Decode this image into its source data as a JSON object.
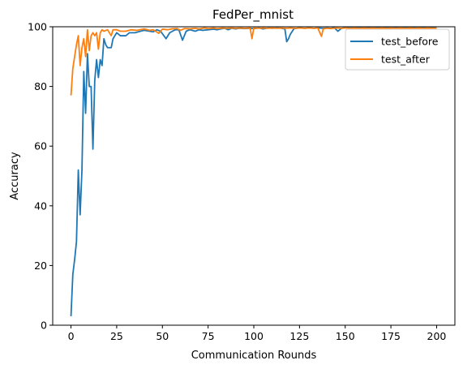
{
  "chart_data": {
    "type": "line",
    "title": "FedPer_mnist",
    "xlabel": "Communication Rounds",
    "ylabel": "Accuracy",
    "xlim": [
      -10,
      210
    ],
    "ylim": [
      0,
      100
    ],
    "xticks": [
      0,
      25,
      50,
      75,
      100,
      125,
      150,
      175,
      200
    ],
    "yticks": [
      0,
      20,
      40,
      60,
      80,
      100
    ],
    "grid": false,
    "legend_position": "top-right",
    "series": [
      {
        "name": "test_before",
        "color": "#1f77b4",
        "points": [
          [
            0,
            3
          ],
          [
            1,
            17
          ],
          [
            2,
            22
          ],
          [
            3,
            28
          ],
          [
            4,
            52
          ],
          [
            5,
            37
          ],
          [
            6,
            52
          ],
          [
            7,
            85
          ],
          [
            8,
            71
          ],
          [
            9,
            91
          ],
          [
            10,
            80
          ],
          [
            11,
            80
          ],
          [
            12,
            59
          ],
          [
            13,
            82
          ],
          [
            14,
            89
          ],
          [
            15,
            83
          ],
          [
            16,
            89
          ],
          [
            17,
            87
          ],
          [
            18,
            96
          ],
          [
            19,
            94
          ],
          [
            20,
            93
          ],
          [
            21,
            93
          ],
          [
            22,
            93
          ],
          [
            23,
            96
          ],
          [
            24,
            97
          ],
          [
            25,
            98
          ],
          [
            27,
            97
          ],
          [
            30,
            97
          ],
          [
            32,
            98
          ],
          [
            35,
            98
          ],
          [
            38,
            98.5
          ],
          [
            40,
            98.8
          ],
          [
            43,
            98.5
          ],
          [
            45,
            98.3
          ],
          [
            47,
            99
          ],
          [
            49,
            98.5
          ],
          [
            52,
            96
          ],
          [
            54,
            98
          ],
          [
            57,
            99
          ],
          [
            59,
            99
          ],
          [
            61,
            95.5
          ],
          [
            63,
            98.5
          ],
          [
            65,
            99
          ],
          [
            68,
            98.5
          ],
          [
            70,
            99
          ],
          [
            72,
            98.8
          ],
          [
            75,
            99
          ],
          [
            78,
            99.2
          ],
          [
            80,
            99
          ],
          [
            82,
            99.3
          ],
          [
            84,
            99.5
          ],
          [
            86,
            99
          ],
          [
            88,
            99.5
          ],
          [
            90,
            99.3
          ],
          [
            92,
            99.5
          ],
          [
            95,
            99.4
          ],
          [
            98,
            99.5
          ],
          [
            100,
            99.4
          ],
          [
            103,
            99.6
          ],
          [
            105,
            99.3
          ],
          [
            108,
            99.6
          ],
          [
            110,
            99.5
          ],
          [
            113,
            99.6
          ],
          [
            115,
            99.5
          ],
          [
            117,
            99.3
          ],
          [
            118,
            95
          ],
          [
            119,
            96
          ],
          [
            120,
            97.5
          ],
          [
            122,
            99.4
          ],
          [
            125,
            99.6
          ],
          [
            128,
            99.5
          ],
          [
            130,
            99.6
          ],
          [
            133,
            99.5
          ],
          [
            135,
            99.6
          ],
          [
            138,
            99.5
          ],
          [
            140,
            99.6
          ],
          [
            142,
            99.5
          ],
          [
            144,
            99.7
          ],
          [
            146,
            98.5
          ],
          [
            148,
            99.5
          ],
          [
            150,
            99.7
          ],
          [
            153,
            99.6
          ],
          [
            155,
            99.8
          ],
          [
            158,
            99.7
          ],
          [
            160,
            99.8
          ],
          [
            163,
            99.7
          ],
          [
            165,
            99.8
          ],
          [
            168,
            99.7
          ],
          [
            170,
            99.8
          ],
          [
            173,
            99.7
          ],
          [
            175,
            99.8
          ],
          [
            178,
            99.7
          ],
          [
            180,
            99.8
          ],
          [
            183,
            99.7
          ],
          [
            185,
            99.8
          ],
          [
            188,
            99.7
          ],
          [
            190,
            99.8
          ],
          [
            193,
            99.7
          ],
          [
            195,
            99.8
          ],
          [
            198,
            99.7
          ],
          [
            200,
            99.8
          ]
        ]
      },
      {
        "name": "test_after",
        "color": "#ff7f0e",
        "points": [
          [
            0,
            77
          ],
          [
            1,
            86
          ],
          [
            2,
            90
          ],
          [
            3,
            94
          ],
          [
            4,
            97
          ],
          [
            5,
            87
          ],
          [
            6,
            93
          ],
          [
            7,
            96
          ],
          [
            8,
            90
          ],
          [
            9,
            99
          ],
          [
            10,
            92
          ],
          [
            11,
            97
          ],
          [
            12,
            98
          ],
          [
            13,
            97
          ],
          [
            14,
            98
          ],
          [
            15,
            92.5
          ],
          [
            16,
            98
          ],
          [
            17,
            99
          ],
          [
            18,
            98.5
          ],
          [
            20,
            99
          ],
          [
            22,
            97
          ],
          [
            23,
            99
          ],
          [
            25,
            99
          ],
          [
            27,
            98.5
          ],
          [
            30,
            98.5
          ],
          [
            33,
            99
          ],
          [
            36,
            98.8
          ],
          [
            40,
            99.3
          ],
          [
            43,
            98.8
          ],
          [
            45,
            99
          ],
          [
            48,
            97.8
          ],
          [
            50,
            99.2
          ],
          [
            53,
            99
          ],
          [
            55,
            99.3
          ],
          [
            58,
            99.4
          ],
          [
            60,
            98.8
          ],
          [
            62,
            99.4
          ],
          [
            65,
            99.3
          ],
          [
            68,
            99.5
          ],
          [
            70,
            99.3
          ],
          [
            73,
            99.6
          ],
          [
            75,
            99.4
          ],
          [
            78,
            99.6
          ],
          [
            80,
            99.4
          ],
          [
            83,
            99.6
          ],
          [
            85,
            99.5
          ],
          [
            88,
            99.6
          ],
          [
            90,
            99.5
          ],
          [
            93,
            99.6
          ],
          [
            95,
            99.5
          ],
          [
            98,
            99.6
          ],
          [
            99,
            96
          ],
          [
            100,
            99.6
          ],
          [
            103,
            99.5
          ],
          [
            105,
            99.6
          ],
          [
            108,
            99.5
          ],
          [
            110,
            99.6
          ],
          [
            113,
            99.5
          ],
          [
            115,
            99.6
          ],
          [
            118,
            99.5
          ],
          [
            120,
            99.6
          ],
          [
            123,
            99.5
          ],
          [
            125,
            99.6
          ],
          [
            128,
            99.5
          ],
          [
            130,
            99.6
          ],
          [
            133,
            99.5
          ],
          [
            135,
            99.6
          ],
          [
            137,
            96.8
          ],
          [
            138,
            99.3
          ],
          [
            140,
            99.5
          ],
          [
            142,
            99.4
          ],
          [
            145,
            99.6
          ],
          [
            148,
            99.5
          ],
          [
            150,
            99.6
          ],
          [
            153,
            99.5
          ],
          [
            155,
            99.6
          ],
          [
            158,
            99.5
          ],
          [
            160,
            99.6
          ],
          [
            163,
            99.5
          ],
          [
            165,
            99.6
          ],
          [
            168,
            99.5
          ],
          [
            170,
            99.6
          ],
          [
            173,
            99.5
          ],
          [
            175,
            99.6
          ],
          [
            178,
            99.5
          ],
          [
            180,
            99.6
          ],
          [
            183,
            99.5
          ],
          [
            185,
            99.6
          ],
          [
            188,
            99.5
          ],
          [
            190,
            99.6
          ],
          [
            193,
            99.5
          ],
          [
            195,
            99.6
          ],
          [
            198,
            99.5
          ],
          [
            200,
            99.6
          ]
        ]
      }
    ]
  }
}
